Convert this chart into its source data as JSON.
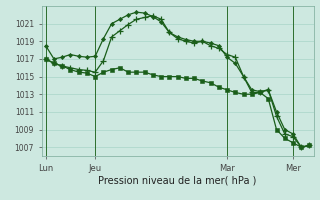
{
  "background_color": "#cde8e0",
  "grid_color": "#a8d4c8",
  "line_color": "#1a5e1a",
  "marker_color": "#1a5e1a",
  "xlabel": "Pression niveau de la mer( hPa )",
  "ylim": [
    1006.0,
    1023.0
  ],
  "yticks": [
    1007,
    1009,
    1011,
    1013,
    1015,
    1017,
    1019,
    1021
  ],
  "xtick_labels": [
    "Lun",
    "Jeu",
    "Mar",
    "Mer"
  ],
  "xtick_positions": [
    0,
    6,
    22,
    30
  ],
  "vline_positions": [
    0,
    6,
    22,
    30
  ],
  "series1_x": [
    0,
    1,
    2,
    3,
    4,
    5,
    6,
    7,
    8,
    9,
    10,
    11,
    12,
    13,
    14,
    15,
    16,
    17,
    18,
    19,
    20,
    21,
    22,
    23,
    24,
    25,
    26,
    27,
    28,
    29,
    30,
    31,
    32
  ],
  "series1_y": [
    1018.5,
    1017.0,
    1017.2,
    1017.5,
    1017.3,
    1017.2,
    1017.3,
    1019.3,
    1021.0,
    1021.5,
    1022.0,
    1022.3,
    1022.2,
    1021.8,
    1021.2,
    1020.0,
    1019.5,
    1019.2,
    1019.0,
    1019.0,
    1018.8,
    1018.5,
    1017.2,
    1016.5,
    1015.0,
    1013.5,
    1013.3,
    1013.5,
    1011.0,
    1009.0,
    1008.5,
    1007.0,
    1007.2
  ],
  "series2_x": [
    0,
    1,
    2,
    3,
    4,
    5,
    6,
    7,
    8,
    9,
    10,
    11,
    12,
    13,
    14,
    15,
    16,
    17,
    18,
    19,
    20,
    21,
    22,
    23,
    24,
    25,
    26,
    27,
    28,
    29,
    30,
    31,
    32
  ],
  "series2_y": [
    1017.0,
    1016.5,
    1016.2,
    1016.0,
    1015.8,
    1015.7,
    1015.5,
    1016.8,
    1019.5,
    1020.2,
    1020.9,
    1021.5,
    1021.7,
    1021.9,
    1021.5,
    1020.0,
    1019.3,
    1019.0,
    1018.8,
    1019.0,
    1018.5,
    1018.2,
    1017.5,
    1017.2,
    1015.0,
    1013.2,
    1013.2,
    1013.5,
    1010.5,
    1008.5,
    1008.2,
    1007.0,
    1007.2
  ],
  "series3_x": [
    0,
    1,
    2,
    3,
    4,
    5,
    6,
    7,
    8,
    9,
    10,
    11,
    12,
    13,
    14,
    15,
    16,
    17,
    18,
    19,
    20,
    21,
    22,
    23,
    24,
    25,
    26,
    27,
    28,
    29,
    30,
    31,
    32
  ],
  "series3_y": [
    1017.0,
    1016.5,
    1016.2,
    1015.8,
    1015.5,
    1015.4,
    1015.0,
    1015.5,
    1015.8,
    1016.0,
    1015.5,
    1015.5,
    1015.5,
    1015.2,
    1015.0,
    1015.0,
    1015.0,
    1014.8,
    1014.8,
    1014.5,
    1014.3,
    1013.8,
    1013.5,
    1013.2,
    1013.0,
    1013.0,
    1013.2,
    1012.5,
    1009.0,
    1008.0,
    1007.5,
    1007.0,
    1007.2
  ]
}
